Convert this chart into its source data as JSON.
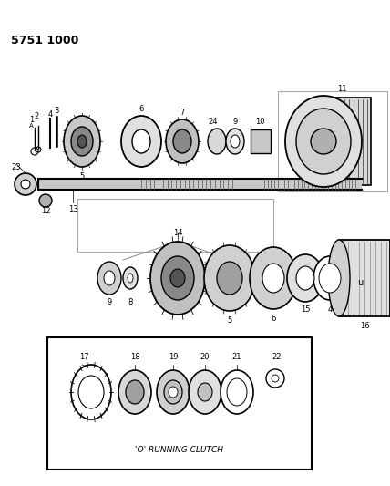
{
  "bg_color": "#ffffff",
  "fig_width": 4.28,
  "fig_height": 5.33,
  "dpi": 100,
  "part_number_text": "5751 1000",
  "box_label": "'O' RUNNING CLUTCH"
}
